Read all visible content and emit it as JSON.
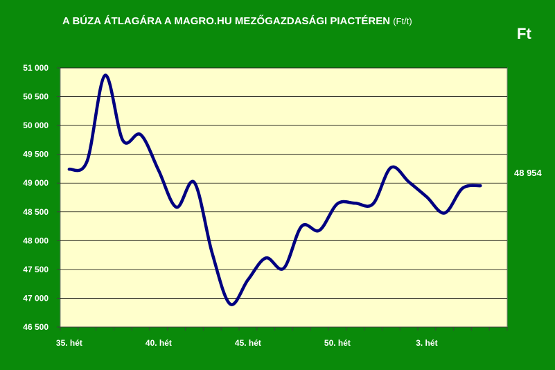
{
  "chart_data": {
    "type": "line",
    "title": "A BÚZA ÁTLAGÁRA A MAGRO.HU MEZŐGAZDASÁGI PIACTÉREN",
    "title_unit": "(Ft/t)",
    "unit_label": "Ft",
    "last_value_label": "48 954",
    "ylim": [
      46500,
      51000
    ],
    "yticks": [
      46500,
      47000,
      47500,
      48000,
      48500,
      49000,
      49500,
      50000,
      50500,
      51000
    ],
    "ytick_labels": [
      "46 500",
      "47 000",
      "47 500",
      "48 000",
      "48 500",
      "49 000",
      "49 500",
      "50 000",
      "50 500",
      "51 000"
    ],
    "x_categories_count": 25,
    "xtick_positions": [
      0,
      5,
      10,
      15,
      20
    ],
    "xtick_labels": [
      "35. hét",
      "40. hét",
      "45. hét",
      "50. hét",
      "3. hét"
    ],
    "grid": true,
    "series": [
      {
        "color": "#000080",
        "values": [
          49240,
          49380,
          50870,
          49740,
          49840,
          49220,
          48580,
          49010,
          47780,
          46900,
          47320,
          47700,
          47520,
          48250,
          48180,
          48640,
          48650,
          48640,
          49270,
          49020,
          48760,
          48480,
          48910,
          48954
        ]
      }
    ],
    "colors": {
      "background": "#0a8a0a",
      "plot_area": "#ffffcc",
      "line": "#000080",
      "text": "#ffffff"
    }
  }
}
